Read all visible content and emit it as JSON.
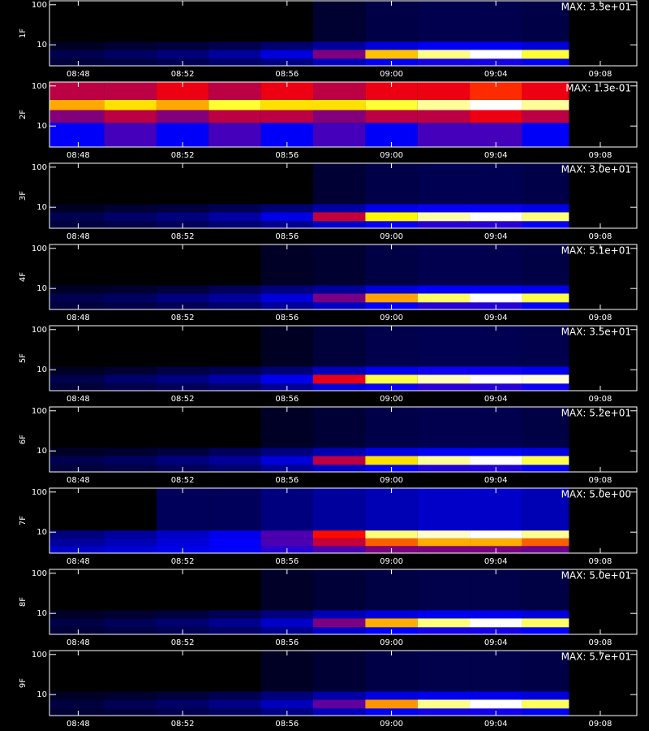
{
  "chart_data": [
    {
      "type": "heatmap",
      "ylabel": "1F",
      "annotation": "MAX: 3.3e+01",
      "log_y": true,
      "xlim": [
        526.9,
        549.4
      ],
      "ylim": [
        3,
        125
      ],
      "xticks": [
        {
          "value": 528,
          "label": "08:48"
        },
        {
          "value": 532,
          "label": "08:52"
        },
        {
          "value": 536,
          "label": "08:56"
        },
        {
          "value": 540,
          "label": "09:00"
        },
        {
          "value": 544,
          "label": "09:04"
        },
        {
          "value": 548,
          "label": "09:08"
        }
      ],
      "yticks": [
        10,
        100
      ],
      "x_bins": [
        526.9,
        529,
        531,
        533,
        535,
        537,
        539,
        541,
        543,
        545,
        546.8
      ],
      "y_bins": [
        3,
        4.5,
        7.5,
        12,
        125
      ],
      "values": [
        [
          0.3,
          0.4,
          0.6,
          1,
          1.5,
          3,
          5,
          6,
          6,
          5
        ],
        [
          0.5,
          0.8,
          1.2,
          2,
          4,
          10,
          24,
          30,
          33,
          28
        ],
        [
          0.1,
          0.2,
          0.3,
          0.5,
          1,
          2,
          4,
          5,
          5,
          4
        ],
        [
          0,
          0,
          0,
          0,
          0,
          0.2,
          0.4,
          0.5,
          0.5,
          0.4
        ]
      ]
    },
    {
      "type": "heatmap",
      "ylabel": "2F",
      "annotation": "MAX: 1.3e-01",
      "log_y": true,
      "xlim": [
        526.9,
        549.4
      ],
      "ylim": [
        3,
        125
      ],
      "xticks": [
        {
          "value": 528,
          "label": "08:48"
        },
        {
          "value": 532,
          "label": "08:52"
        },
        {
          "value": 536,
          "label": "08:56"
        },
        {
          "value": 540,
          "label": "09:00"
        },
        {
          "value": 544,
          "label": "09:04"
        },
        {
          "value": 548,
          "label": "09:08"
        }
      ],
      "yticks": [
        10,
        100
      ],
      "x_bins": [
        526.9,
        529,
        531,
        533,
        535,
        537,
        539,
        541,
        543,
        545,
        546.8
      ],
      "y_bins": [
        3,
        12,
        25,
        45,
        125
      ],
      "values": [
        [
          0.02,
          0.03,
          0.02,
          0.03,
          0.02,
          0.03,
          0.02,
          0.03,
          0.03,
          0.02
        ],
        [
          0.04,
          0.05,
          0.04,
          0.05,
          0.05,
          0.04,
          0.05,
          0.05,
          0.06,
          0.05
        ],
        [
          0.09,
          0.1,
          0.09,
          0.11,
          0.1,
          0.1,
          0.11,
          0.12,
          0.13,
          0.12
        ],
        [
          0.05,
          0.05,
          0.06,
          0.05,
          0.06,
          0.05,
          0.06,
          0.06,
          0.07,
          0.06
        ]
      ]
    },
    {
      "type": "heatmap",
      "ylabel": "3F",
      "annotation": "MAX: 3.0e+01",
      "log_y": true,
      "xlim": [
        526.9,
        549.4
      ],
      "ylim": [
        3,
        125
      ],
      "xticks": [
        {
          "value": 528,
          "label": "08:48"
        },
        {
          "value": 532,
          "label": "08:52"
        },
        {
          "value": 536,
          "label": "08:56"
        },
        {
          "value": 540,
          "label": "09:00"
        },
        {
          "value": 544,
          "label": "09:04"
        },
        {
          "value": 548,
          "label": "09:08"
        }
      ],
      "yticks": [
        10,
        100
      ],
      "x_bins": [
        526.9,
        529,
        531,
        533,
        535,
        537,
        539,
        541,
        543,
        545,
        546.8
      ],
      "y_bins": [
        3,
        4.5,
        7.5,
        12,
        125
      ],
      "values": [
        [
          0.3,
          0.4,
          0.6,
          1,
          1.5,
          3,
          5,
          6,
          6,
          5
        ],
        [
          0.5,
          0.8,
          1.2,
          2,
          4,
          12,
          24,
          28,
          30,
          27
        ],
        [
          0.1,
          0.2,
          0.3,
          0.5,
          1,
          2,
          4,
          5,
          5,
          4
        ],
        [
          0,
          0,
          0,
          0,
          0,
          0.2,
          0.4,
          0.5,
          0.5,
          0.4
        ]
      ]
    },
    {
      "type": "heatmap",
      "ylabel": "4F",
      "annotation": "MAX: 5.1e+01",
      "log_y": true,
      "xlim": [
        526.9,
        549.4
      ],
      "ylim": [
        3,
        125
      ],
      "xticks": [
        {
          "value": 528,
          "label": "08:48"
        },
        {
          "value": 532,
          "label": "08:52"
        },
        {
          "value": 536,
          "label": "08:56"
        },
        {
          "value": 540,
          "label": "09:00"
        },
        {
          "value": 544,
          "label": "09:04"
        },
        {
          "value": 548,
          "label": "09:08"
        }
      ],
      "yticks": [
        10,
        100
      ],
      "x_bins": [
        526.9,
        529,
        531,
        533,
        535,
        537,
        539,
        541,
        543,
        545,
        546.8
      ],
      "y_bins": [
        3,
        4.5,
        7.5,
        12,
        125
      ],
      "values": [
        [
          0.5,
          0.7,
          1,
          1.5,
          3,
          5,
          8,
          10,
          10,
          8
        ],
        [
          0.8,
          1.2,
          2,
          3,
          6,
          15,
          35,
          45,
          51,
          44
        ],
        [
          0.2,
          0.3,
          0.5,
          1,
          2,
          3,
          6,
          8,
          8,
          7
        ],
        [
          0,
          0,
          0,
          0,
          0.2,
          0.3,
          0.6,
          0.8,
          0.8,
          0.6
        ]
      ]
    },
    {
      "type": "heatmap",
      "ylabel": "5F",
      "annotation": "MAX: 3.5e+01",
      "log_y": true,
      "xlim": [
        526.9,
        549.4
      ],
      "ylim": [
        3,
        125
      ],
      "xticks": [
        {
          "value": 528,
          "label": "08:48"
        },
        {
          "value": 532,
          "label": "08:52"
        },
        {
          "value": 536,
          "label": "08:56"
        },
        {
          "value": 540,
          "label": "09:00"
        },
        {
          "value": 544,
          "label": "09:04"
        },
        {
          "value": 548,
          "label": "09:08"
        }
      ],
      "yticks": [
        10,
        100
      ],
      "x_bins": [
        526.9,
        529,
        531,
        533,
        535,
        537,
        539,
        541,
        543,
        545,
        546.8
      ],
      "y_bins": [
        3,
        4.5,
        7.5,
        12,
        125
      ],
      "values": [
        [
          0.3,
          0.5,
          0.7,
          1,
          2,
          4,
          6,
          7,
          7,
          6
        ],
        [
          0.5,
          1,
          1.5,
          2.5,
          5,
          16,
          30,
          33,
          35,
          34
        ],
        [
          0.1,
          0.2,
          0.4,
          0.6,
          1.2,
          3,
          5,
          6,
          6,
          5
        ],
        [
          0,
          0,
          0,
          0,
          0.1,
          0.3,
          0.5,
          0.6,
          0.6,
          0.5
        ]
      ]
    },
    {
      "type": "heatmap",
      "ylabel": "6F",
      "annotation": "MAX: 5.2e+01",
      "log_y": true,
      "xlim": [
        526.9,
        549.4
      ],
      "ylim": [
        3,
        125
      ],
      "xticks": [
        {
          "value": 528,
          "label": "08:48"
        },
        {
          "value": 532,
          "label": "08:52"
        },
        {
          "value": 536,
          "label": "08:56"
        },
        {
          "value": 540,
          "label": "09:00"
        },
        {
          "value": 544,
          "label": "09:04"
        },
        {
          "value": 548,
          "label": "09:08"
        }
      ],
      "yticks": [
        10,
        100
      ],
      "x_bins": [
        526.9,
        529,
        531,
        533,
        535,
        537,
        539,
        541,
        543,
        545,
        546.8
      ],
      "y_bins": [
        3,
        4.5,
        7.5,
        12,
        125
      ],
      "values": [
        [
          0.5,
          0.7,
          1,
          1.5,
          3,
          5,
          8,
          10,
          10,
          8
        ],
        [
          0.8,
          1.2,
          2,
          3,
          6,
          20,
          40,
          48,
          52,
          45
        ],
        [
          0.2,
          0.3,
          0.5,
          1,
          2,
          4,
          7,
          8,
          8,
          7
        ],
        [
          0,
          0,
          0,
          0,
          0.2,
          0.4,
          0.7,
          0.8,
          0.8,
          0.6
        ]
      ]
    },
    {
      "type": "heatmap",
      "ylabel": "7F",
      "annotation": "MAX: 5.0e+00",
      "log_y": true,
      "xlim": [
        526.9,
        549.4
      ],
      "ylim": [
        3,
        125
      ],
      "xticks": [
        {
          "value": 528,
          "label": "08:48"
        },
        {
          "value": 532,
          "label": "08:52"
        },
        {
          "value": 536,
          "label": "08:56"
        },
        {
          "value": 540,
          "label": "09:00"
        },
        {
          "value": 544,
          "label": "09:04"
        },
        {
          "value": 548,
          "label": "09:08"
        }
      ],
      "yticks": [
        10,
        100
      ],
      "x_bins": [
        526.9,
        529,
        531,
        533,
        535,
        537,
        539,
        541,
        543,
        545,
        546.8
      ],
      "y_bins": [
        3,
        4.5,
        7,
        11,
        125
      ],
      "values": [
        [
          0.5,
          0.6,
          0.7,
          0.8,
          1,
          1.2,
          1.5,
          1.5,
          1.5,
          1.4
        ],
        [
          0.3,
          0.4,
          0.6,
          0.8,
          1.2,
          2,
          3,
          3.5,
          3.5,
          3
        ],
        [
          0.2,
          0.3,
          0.5,
          0.7,
          1.2,
          2.5,
          4.5,
          4.8,
          5,
          4.6
        ],
        [
          0,
          0,
          0.1,
          0.1,
          0.2,
          0.3,
          0.4,
          0.5,
          0.5,
          0.4
        ]
      ]
    },
    {
      "type": "heatmap",
      "ylabel": "8F",
      "annotation": "MAX: 5.0e+01",
      "log_y": true,
      "xlim": [
        526.9,
        549.4
      ],
      "ylim": [
        3,
        125
      ],
      "xticks": [
        {
          "value": 528,
          "label": "08:48"
        },
        {
          "value": 532,
          "label": "08:52"
        },
        {
          "value": 536,
          "label": "08:56"
        },
        {
          "value": 540,
          "label": "09:00"
        },
        {
          "value": 544,
          "label": "09:04"
        },
        {
          "value": 548,
          "label": "09:08"
        }
      ],
      "yticks": [
        10,
        100
      ],
      "x_bins": [
        526.9,
        529,
        531,
        533,
        535,
        537,
        539,
        541,
        543,
        545,
        546.8
      ],
      "y_bins": [
        3,
        4.5,
        7.5,
        12,
        125
      ],
      "values": [
        [
          0.4,
          0.6,
          0.9,
          1.3,
          2.5,
          5,
          8,
          9,
          9,
          8
        ],
        [
          0.6,
          1,
          1.5,
          2.5,
          5,
          15,
          35,
          45,
          50,
          44
        ],
        [
          0.2,
          0.3,
          0.5,
          0.9,
          2,
          4,
          6,
          7,
          7,
          6
        ],
        [
          0,
          0,
          0,
          0,
          0.2,
          0.4,
          0.6,
          0.7,
          0.7,
          0.6
        ]
      ]
    },
    {
      "type": "heatmap",
      "ylabel": "9F",
      "annotation": "MAX: 5.7e+01",
      "log_y": true,
      "xlim": [
        526.9,
        549.4
      ],
      "ylim": [
        3,
        125
      ],
      "xticks": [
        {
          "value": 528,
          "label": "08:48"
        },
        {
          "value": 532,
          "label": "08:52"
        },
        {
          "value": 536,
          "label": "08:56"
        },
        {
          "value": 540,
          "label": "09:00"
        },
        {
          "value": 544,
          "label": "09:04"
        },
        {
          "value": 548,
          "label": "09:08"
        }
      ],
      "yticks": [
        10,
        100
      ],
      "x_bins": [
        526.9,
        529,
        531,
        533,
        535,
        537,
        539,
        541,
        543,
        545,
        546.8
      ],
      "y_bins": [
        3,
        4.5,
        7.5,
        12,
        125
      ],
      "values": [
        [
          0.4,
          0.6,
          0.9,
          1.3,
          2.5,
          5,
          9,
          10,
          10,
          9
        ],
        [
          0.6,
          1,
          1.5,
          2.5,
          5,
          15,
          38,
          52,
          57,
          50
        ],
        [
          0.2,
          0.3,
          0.5,
          0.9,
          2,
          4,
          7,
          8,
          8,
          7
        ],
        [
          0,
          0,
          0,
          0,
          0.2,
          0.4,
          0.7,
          0.8,
          0.8,
          0.7
        ]
      ]
    }
  ]
}
